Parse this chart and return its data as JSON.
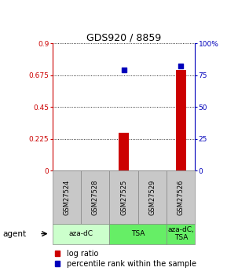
{
  "title": "GDS920 / 8859",
  "samples": [
    "GSM27524",
    "GSM27528",
    "GSM27525",
    "GSM27529",
    "GSM27526"
  ],
  "log_ratio": [
    0.0,
    0.0,
    0.27,
    0.0,
    0.71
  ],
  "percentile_pct": [
    0.0,
    0.0,
    79.0,
    0.0,
    82.0
  ],
  "ylim_left": [
    0,
    0.9
  ],
  "ylim_right": [
    0,
    100
  ],
  "yticks_left": [
    0,
    0.225,
    0.45,
    0.675,
    0.9
  ],
  "yticks_right": [
    0,
    25,
    50,
    75,
    100
  ],
  "ytick_labels_left": [
    "0",
    "0.225",
    "0.45",
    "0.675",
    "0.9"
  ],
  "ytick_labels_right": [
    "0",
    "25",
    "50",
    "75",
    "100%"
  ],
  "bar_color": "#cc0000",
  "dot_color": "#0000bb",
  "bar_width": 0.35,
  "dot_size": 18,
  "sample_box_color": "#c8c8c8",
  "group_defs": [
    {
      "label": "aza-dC",
      "start": 0,
      "end": 2,
      "color": "#ccffcc"
    },
    {
      "label": "TSA",
      "start": 2,
      "end": 4,
      "color": "#66ee66"
    },
    {
      "label": "aza-dC,\nTSA",
      "start": 4,
      "end": 5,
      "color": "#66ee66"
    }
  ],
  "title_color": "#000000",
  "left_axis_color": "#cc0000",
  "right_axis_color": "#0000bb",
  "legend_bar_label": "log ratio",
  "legend_dot_label": "percentile rank within the sample",
  "agent_label": "agent"
}
